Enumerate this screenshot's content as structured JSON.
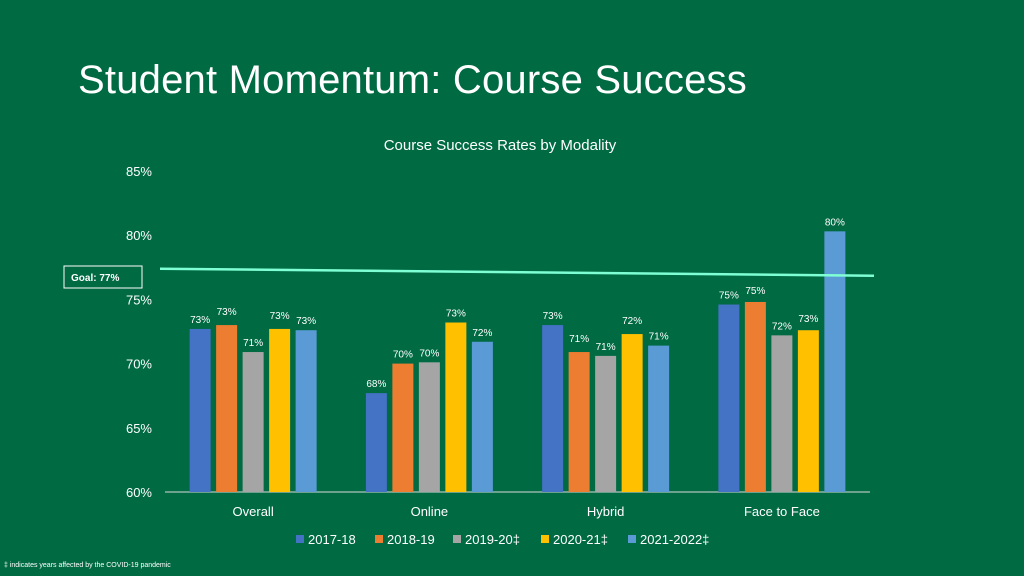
{
  "slide": {
    "title": "Student Momentum:  Course Success",
    "footnote": "‡ indicates years affected by the COVID-19 pandemic"
  },
  "chart_data": {
    "type": "bar",
    "title": "Course Success Rates by Modality",
    "categories": [
      "Overall",
      "Online",
      "Hybrid",
      "Face to Face"
    ],
    "series": [
      {
        "name": "2017-18",
        "color": "#4472c4",
        "values": [
          72.7,
          67.7,
          73.0,
          74.6
        ],
        "labels": [
          "73%",
          "68%",
          "73%",
          "75%"
        ]
      },
      {
        "name": "2018-19",
        "color": "#ed7d31",
        "values": [
          73.0,
          70.0,
          70.9,
          74.8
        ],
        "labels": [
          "73%",
          "70%",
          "71%",
          "75%"
        ]
      },
      {
        "name": "2019-20‡",
        "color": "#a5a5a5",
        "values": [
          70.9,
          70.1,
          70.6,
          72.2
        ],
        "labels": [
          "71%",
          "70%",
          "71%",
          "72%"
        ]
      },
      {
        "name": "2020-21‡",
        "color": "#ffc000",
        "values": [
          72.7,
          73.2,
          72.3,
          72.6
        ],
        "labels": [
          "73%",
          "73%",
          "72%",
          "73%"
        ]
      },
      {
        "name": "2021-2022‡",
        "color": "#5b9bd5",
        "values": [
          72.6,
          71.7,
          71.4,
          80.3
        ],
        "labels": [
          "73%",
          "72%",
          "71%",
          "80%"
        ]
      }
    ],
    "ylim": [
      60,
      85
    ],
    "yticks": [
      60,
      65,
      70,
      75,
      80,
      85
    ],
    "ytick_labels": [
      "60%",
      "65%",
      "70%",
      "75%",
      "80%",
      "85%"
    ],
    "goal": {
      "label": "Goal:  77%",
      "value": 77,
      "line_color": "#7fffd4",
      "box_color": "#ffffff"
    },
    "legend_position": "bottom",
    "grid": false
  }
}
